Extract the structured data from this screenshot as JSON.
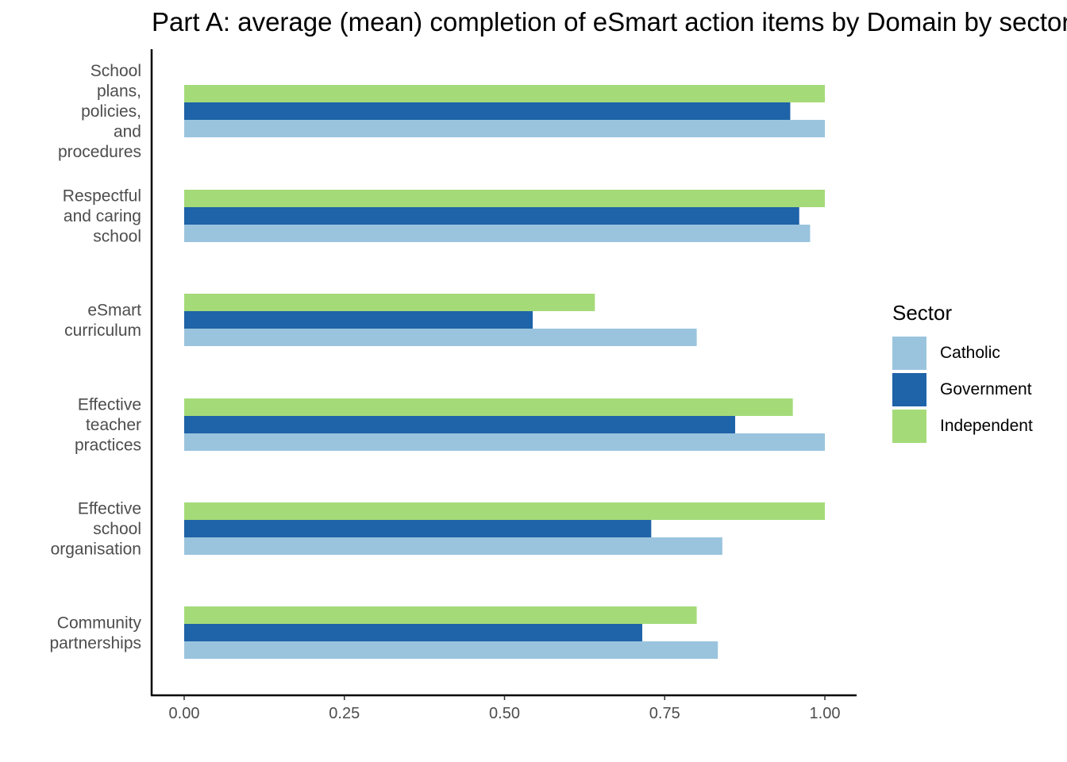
{
  "chart_data": {
    "type": "bar",
    "orientation": "horizontal",
    "title": "Part A: average (mean) completion of eSmart action items by Domain by sector",
    "categories": [
      "School plans, policies, and procedures",
      "Respectful and caring school",
      "eSmart curriculum",
      "Effective teacher practices",
      "Effective school organisation",
      "Community partnerships"
    ],
    "category_lines": [
      [
        "School",
        "plans,",
        "policies,",
        "and",
        "procedures"
      ],
      [
        "Respectful",
        "and caring",
        "school"
      ],
      [
        "eSmart",
        "curriculum"
      ],
      [
        "Effective",
        "teacher",
        "practices"
      ],
      [
        "Effective",
        "school",
        "organisation"
      ],
      [
        "Community",
        "partnerships"
      ]
    ],
    "series": [
      {
        "name": "Catholic",
        "color": "#9ac4de",
        "values": [
          1.0,
          0.977,
          0.8,
          1.0,
          0.84,
          0.833
        ]
      },
      {
        "name": "Government",
        "color": "#1f63a8",
        "values": [
          0.946,
          0.96,
          0.544,
          0.86,
          0.729,
          0.715
        ]
      },
      {
        "name": "Independent",
        "color": "#a4db78",
        "values": [
          1.0,
          1.0,
          0.641,
          0.95,
          1.0,
          0.8
        ]
      }
    ],
    "xlim": [
      0,
      1
    ],
    "x_ticks": [
      "0.00",
      "0.25",
      "0.50",
      "0.75",
      "1.00"
    ],
    "xlabel": "",
    "ylabel": "",
    "grid": false,
    "legend": {
      "title": "Sector",
      "position": "right"
    }
  }
}
